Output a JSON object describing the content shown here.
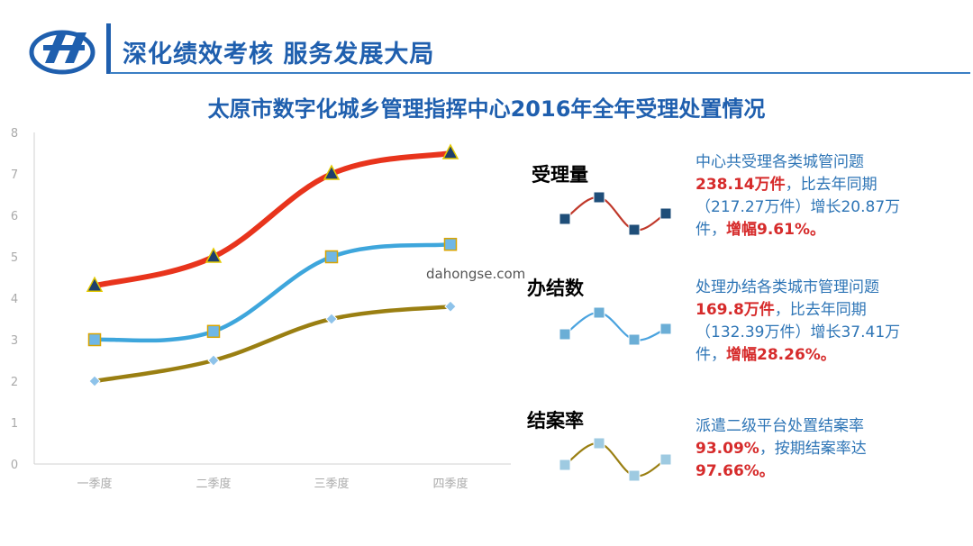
{
  "header": {
    "title": "深化绩效考核  服务发展大局"
  },
  "main_title": "太原市数字化城乡管理指挥中心2016年全年受理处置情况",
  "watermark": "dahongse.com",
  "colors": {
    "accent": "#1f5fae",
    "series_red": "#e8341c",
    "series_blue": "#3ea6dc",
    "series_olive": "#9a7f12",
    "highlight_red": "#d62b2b",
    "desc_blue": "#2e75b6"
  },
  "chart_data": {
    "type": "line",
    "categories": [
      "一季度",
      "二季度",
      "三季度",
      "四季度"
    ],
    "ylim": [
      0,
      8
    ],
    "yticks": [
      "0",
      "1",
      "2",
      "3",
      "4",
      "5",
      "6",
      "7",
      "8"
    ],
    "grid": false,
    "series": [
      {
        "values": [
          4.3,
          5.0,
          7.0,
          7.5
        ],
        "color": "#e8341c",
        "marker": "triangle"
      },
      {
        "values": [
          3.0,
          3.2,
          5.0,
          5.3
        ],
        "color": "#3ea6dc",
        "marker": "square"
      },
      {
        "values": [
          2.0,
          2.5,
          3.5,
          3.8
        ],
        "color": "#9a7f12",
        "marker": "diamond"
      }
    ]
  },
  "metrics": [
    {
      "label": "受理量",
      "color": "#e8341c",
      "line1": "中心共受理各类城管问题",
      "value_hl": "238.14万件",
      "after_value": "，比去年同期",
      "line3": "（217.27万件）增长20.87万",
      "line4_pre": "件，",
      "rate_hl": "增幅9.61%。",
      "spark": {
        "values": [
          2.0,
          4.0,
          1.0,
          2.5
        ],
        "line_color": "#c0392b",
        "marker_color": "#1f4e79"
      }
    },
    {
      "label": "办结数",
      "color": "#3ea6dc",
      "line1": "处理办结各类城市管理问题",
      "value_hl": "169.8万件",
      "after_value": "，比去年同期",
      "line3": "（132.39万件）增长37.41万",
      "line4_pre": "件，",
      "rate_hl": "增幅28.26%。",
      "spark": {
        "values": [
          2.0,
          4.0,
          1.5,
          2.5
        ],
        "line_color": "#4aa3df",
        "marker_color": "#6baed6"
      }
    },
    {
      "label": "结案率",
      "color": "#9a7f12",
      "line1": "派遣二级平台处置结案率",
      "value_hl": "93.09%",
      "after_value": "，按期结案率达",
      "value2_hl": "97.66%。",
      "spark": {
        "values": [
          2.0,
          4.0,
          1.0,
          2.5
        ],
        "line_color": "#9a7f12",
        "marker_color": "#9ecae1"
      }
    }
  ]
}
